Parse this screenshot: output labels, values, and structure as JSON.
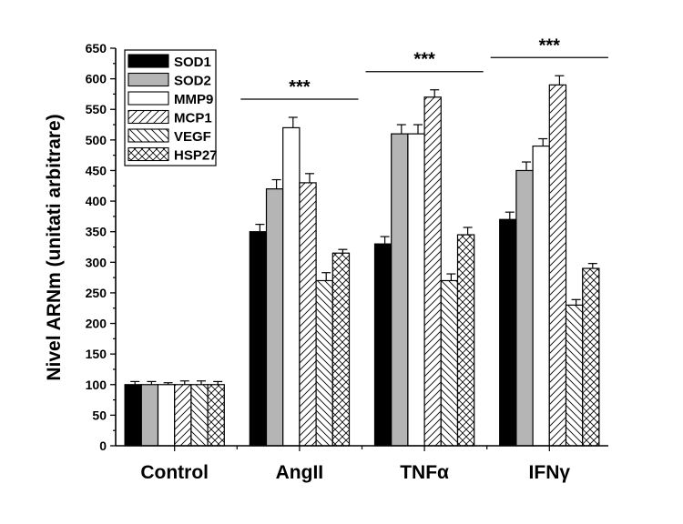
{
  "chart_data": {
    "type": "bar",
    "ylabel": "Nivel ARNm (unitati arbitrare)",
    "xlabel": "",
    "ylim": [
      0,
      650
    ],
    "yticks": [
      0,
      50,
      100,
      150,
      200,
      250,
      300,
      350,
      400,
      450,
      500,
      550,
      600,
      650
    ],
    "categories": [
      "Control",
      "AngII",
      "TNFα",
      "IFNγ"
    ],
    "series": [
      {
        "name": "SOD1",
        "fill": "solid-black",
        "values": [
          100,
          350,
          330,
          370
        ],
        "errors": [
          5,
          12,
          12,
          12
        ]
      },
      {
        "name": "SOD2",
        "fill": "solid-gray",
        "values": [
          100,
          420,
          510,
          450
        ],
        "errors": [
          5,
          15,
          15,
          14
        ]
      },
      {
        "name": "MMP9",
        "fill": "solid-white",
        "values": [
          100,
          520,
          510,
          490
        ],
        "errors": [
          3,
          17,
          15,
          12
        ]
      },
      {
        "name": "MCP1",
        "fill": "hatch-forward",
        "values": [
          100,
          430,
          570,
          590
        ],
        "errors": [
          6,
          15,
          12,
          15
        ]
      },
      {
        "name": "VEGF",
        "fill": "hatch-back",
        "values": [
          100,
          270,
          270,
          230
        ],
        "errors": [
          6,
          13,
          11,
          9
        ]
      },
      {
        "name": "HSP27",
        "fill": "crosshatch",
        "values": [
          100,
          315,
          345,
          290
        ],
        "errors": [
          5,
          6,
          12,
          8
        ]
      }
    ],
    "annotations": [
      {
        "text": "***",
        "category": "AngII"
      },
      {
        "text": "***",
        "category": "TNFα"
      },
      {
        "text": "***",
        "category": "IFNγ"
      }
    ],
    "legend_position": "top-left",
    "grid": false
  }
}
